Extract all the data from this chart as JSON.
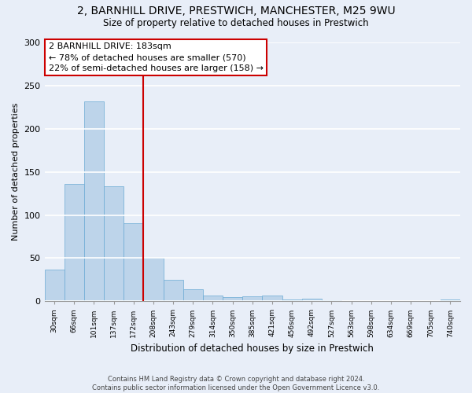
{
  "title1": "2, BARNHILL DRIVE, PRESTWICH, MANCHESTER, M25 9WU",
  "title2": "Size of property relative to detached houses in Prestwich",
  "xlabel": "Distribution of detached houses by size in Prestwich",
  "ylabel": "Number of detached properties",
  "categories": [
    "30sqm",
    "66sqm",
    "101sqm",
    "137sqm",
    "172sqm",
    "208sqm",
    "243sqm",
    "279sqm",
    "314sqm",
    "350sqm",
    "385sqm",
    "421sqm",
    "456sqm",
    "492sqm",
    "527sqm",
    "563sqm",
    "598sqm",
    "634sqm",
    "669sqm",
    "705sqm",
    "740sqm"
  ],
  "values": [
    37,
    136,
    232,
    133,
    90,
    50,
    25,
    14,
    7,
    5,
    6,
    7,
    2,
    3,
    1,
    0,
    0,
    0,
    0,
    0,
    2
  ],
  "bar_color": "#bdd4ea",
  "bar_edgecolor": "#6aaad4",
  "vline_x": 4.5,
  "vline_color": "#cc0000",
  "annotation_text": "2 BARNHILL DRIVE: 183sqm\n← 78% of detached houses are smaller (570)\n22% of semi-detached houses are larger (158) →",
  "annotation_box_color": "#ffffff",
  "annotation_box_edgecolor": "#cc0000",
  "ylim": [
    0,
    300
  ],
  "yticks": [
    0,
    50,
    100,
    150,
    200,
    250,
    300
  ],
  "footnote": "Contains HM Land Registry data © Crown copyright and database right 2024.\nContains public sector information licensed under the Open Government Licence v3.0.",
  "background_color": "#e8eef8",
  "grid_color": "#ffffff"
}
